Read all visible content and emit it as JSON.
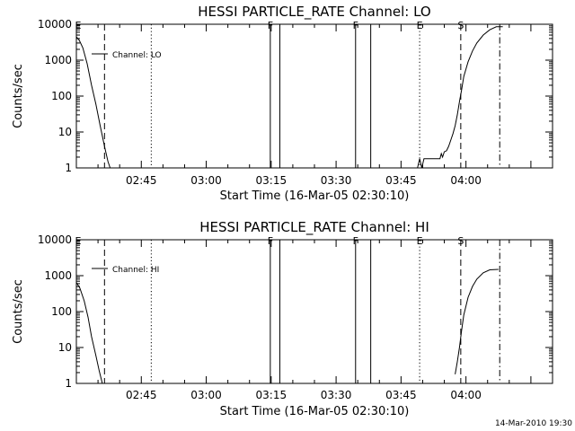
{
  "chart_data": [
    {
      "type": "line",
      "title": "HESSI PARTICLE_RATE Channel: LO",
      "xlabel": "Start Time (16-Mar-05 02:30:10)",
      "ylabel": "Counts/sec",
      "yscale": "log",
      "ylim": [
        1,
        10000
      ],
      "xlim_minutes": [
        0,
        110
      ],
      "x_ticks": [
        {
          "label": "02:45",
          "x": 15
        },
        {
          "label": "03:00",
          "x": 30
        },
        {
          "label": "03:15",
          "x": 45
        },
        {
          "label": "03:30",
          "x": 60
        },
        {
          "label": "03:45",
          "x": 75
        },
        {
          "label": "04:00",
          "x": 90
        }
      ],
      "y_ticks": [
        {
          "label": "1",
          "y": 1
        },
        {
          "label": "10",
          "y": 10
        },
        {
          "label": "100",
          "y": 100
        },
        {
          "label": "1000",
          "y": 1000
        },
        {
          "label": "10000",
          "y": 10000
        }
      ],
      "legend": "top-left",
      "series": [
        {
          "name": "Channel: LO",
          "segments": [
            [
              [
                0.0,
                4500
              ],
              [
                0.7,
                3500
              ],
              [
                1.5,
                2200
              ],
              [
                2.5,
                800
              ],
              [
                3.5,
                200
              ],
              [
                4.5,
                60
              ],
              [
                5.5,
                15
              ],
              [
                6.5,
                4
              ],
              [
                7.3,
                1.5
              ],
              [
                7.8,
                1
              ]
            ],
            [
              [
                78.8,
                1
              ],
              [
                79.3,
                1.8
              ],
              [
                79.8,
                1
              ],
              [
                80.3,
                1.8
              ],
              [
                82.5,
                1.8
              ],
              [
                84.0,
                1.8
              ],
              [
                84.3,
                2.5
              ],
              [
                84.6,
                2.0
              ],
              [
                85.0,
                2.8
              ],
              [
                85.5,
                3.0
              ],
              [
                86.0,
                4
              ],
              [
                86.5,
                6
              ],
              [
                87.0,
                9
              ],
              [
                87.5,
                15
              ],
              [
                88.0,
                30
              ],
              [
                88.5,
                70
              ],
              [
                89.0,
                150
              ],
              [
                89.5,
                350
              ],
              [
                90.5,
                900
              ],
              [
                91.5,
                1800
              ],
              [
                92.5,
                3000
              ],
              [
                94.0,
                5000
              ],
              [
                95.5,
                7000
              ],
              [
                97.0,
                8500
              ],
              [
                98.5,
                8500
              ]
            ]
          ]
        }
      ],
      "vlines": [
        {
          "x": 6.5,
          "style": "dashed",
          "label": ""
        },
        {
          "x": 17.3,
          "style": "dotted",
          "label": ""
        },
        {
          "x": 44.8,
          "style": "solid",
          "label": "F"
        },
        {
          "x": 47.0,
          "style": "solid",
          "label": ""
        },
        {
          "x": 64.5,
          "style": "solid",
          "label": "F"
        },
        {
          "x": 68.0,
          "style": "solid",
          "label": ""
        },
        {
          "x": 79.3,
          "style": "dotted",
          "label": "E"
        },
        {
          "x": 88.8,
          "style": "dashed",
          "label": "S"
        },
        {
          "x": 97.8,
          "style": "dashdot",
          "label": ""
        }
      ],
      "corner_label": "E"
    },
    {
      "type": "line",
      "title": "HESSI PARTICLE_RATE Channel: HI",
      "xlabel": "Start Time (16-Mar-05 02:30:10)",
      "ylabel": "Counts/sec",
      "yscale": "log",
      "ylim": [
        1,
        10000
      ],
      "xlim_minutes": [
        0,
        110
      ],
      "x_ticks": [
        {
          "label": "02:45",
          "x": 15
        },
        {
          "label": "03:00",
          "x": 30
        },
        {
          "label": "03:15",
          "x": 45
        },
        {
          "label": "03:30",
          "x": 60
        },
        {
          "label": "03:45",
          "x": 75
        },
        {
          "label": "04:00",
          "x": 90
        }
      ],
      "y_ticks": [
        {
          "label": "1",
          "y": 1
        },
        {
          "label": "10",
          "y": 10
        },
        {
          "label": "100",
          "y": 100
        },
        {
          "label": "1000",
          "y": 1000
        },
        {
          "label": "10000",
          "y": 10000
        }
      ],
      "legend": "top-left",
      "series": [
        {
          "name": "Channel: HI",
          "segments": [
            [
              [
                0.0,
                650
              ],
              [
                0.8,
                450
              ],
              [
                1.8,
                200
              ],
              [
                2.7,
                70
              ],
              [
                3.5,
                20
              ],
              [
                4.5,
                6
              ],
              [
                5.3,
                2.2
              ],
              [
                6.0,
                1
              ]
            ],
            [
              [
                87.5,
                1.8
              ],
              [
                88.0,
                4
              ],
              [
                88.5,
                10
              ],
              [
                89.0,
                30
              ],
              [
                89.5,
                80
              ],
              [
                90.5,
                250
              ],
              [
                91.5,
                500
              ],
              [
                92.5,
                800
              ],
              [
                94.0,
                1200
              ],
              [
                95.5,
                1450
              ],
              [
                97.5,
                1500
              ]
            ]
          ]
        }
      ],
      "vlines": [
        {
          "x": 6.5,
          "style": "dashed",
          "label": ""
        },
        {
          "x": 17.3,
          "style": "dotted",
          "label": ""
        },
        {
          "x": 44.8,
          "style": "solid",
          "label": "F"
        },
        {
          "x": 47.0,
          "style": "solid",
          "label": ""
        },
        {
          "x": 64.5,
          "style": "solid",
          "label": "F"
        },
        {
          "x": 68.0,
          "style": "solid",
          "label": ""
        },
        {
          "x": 79.3,
          "style": "dotted",
          "label": "E"
        },
        {
          "x": 88.8,
          "style": "dashed",
          "label": "S"
        },
        {
          "x": 97.8,
          "style": "dashdot",
          "label": ""
        }
      ],
      "corner_label": "E"
    }
  ],
  "footer": {
    "timestamp": "14-Mar-2010 19:30"
  }
}
